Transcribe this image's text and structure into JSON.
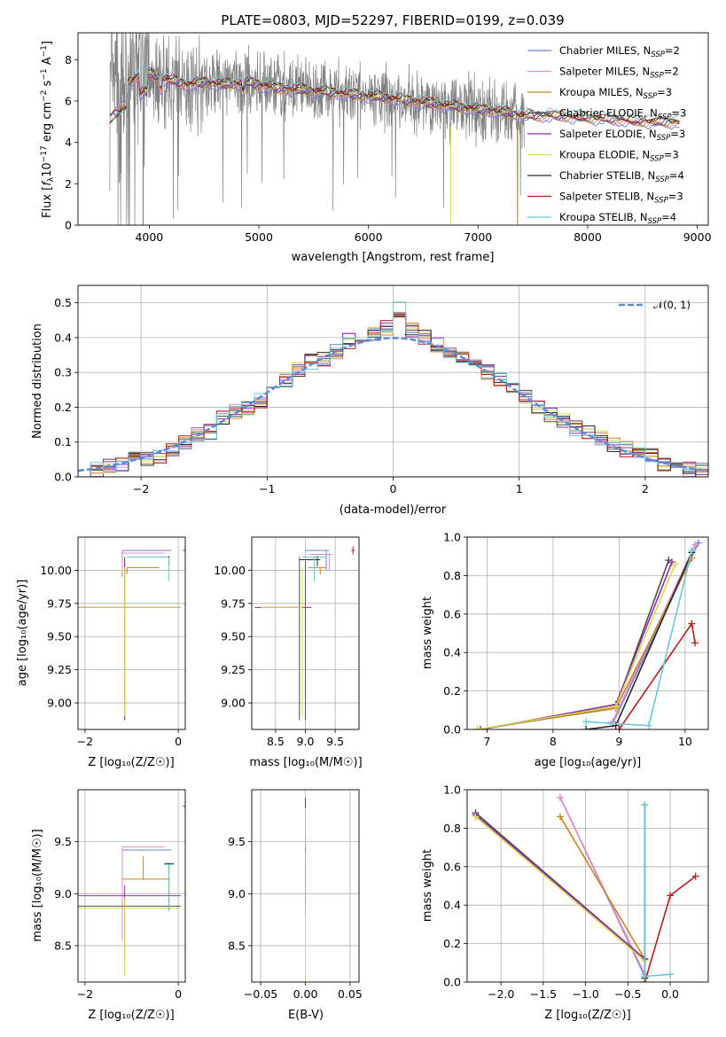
{
  "chart_data": [
    {
      "id": "spectrum",
      "type": "line",
      "title": "PLATE=0803, MJD=52297, FIBERID=0199, z=0.039",
      "xlabel": "wavelength [Angstrom, rest frame]",
      "ylabel_parts": [
        "Flux [",
        "f",
        "λ",
        "10",
        "−17",
        " erg cm",
        "−2",
        " s",
        "−1",
        " A",
        "−1",
        "]"
      ],
      "xlim": [
        3350,
        9100
      ],
      "ylim": [
        0,
        9.3
      ],
      "xticks": [
        4000,
        5000,
        6000,
        7000,
        8000,
        9000
      ],
      "yticks": [
        0,
        2,
        4,
        6,
        8
      ],
      "grid": false,
      "legend_position": "top-right",
      "observed_color": "#808080",
      "observed_range": [
        3640,
        7420
      ],
      "model_range": [
        3640,
        8840
      ],
      "continuum_x": [
        3640,
        3800,
        3950,
        4050,
        4200,
        4350,
        4500,
        4700,
        4900,
        5200,
        5500,
        5800,
        6100,
        6400,
        6700,
        7000,
        7200,
        7400,
        7700,
        8000,
        8300,
        8600,
        8840
      ],
      "continuum_y": [
        6.2,
        6.8,
        7.5,
        7.2,
        7.0,
        6.8,
        6.9,
        6.8,
        6.9,
        6.6,
        6.5,
        6.35,
        6.2,
        6.0,
        5.8,
        5.6,
        5.5,
        5.3,
        5.3,
        5.2,
        5.1,
        5.0,
        5.0
      ],
      "series": [
        {
          "name_main": "Chabrier MILES, N",
          "name_sub": "SSP",
          "name_tail": "=2",
          "color": "#6f7fd8"
        },
        {
          "name_main": "Salpeter MILES, N",
          "name_sub": "SSP",
          "name_tail": "=2",
          "color": "#e38fc8"
        },
        {
          "name_main": "Kroupa MILES, N",
          "name_sub": "SSP",
          "name_tail": "=3",
          "color": "#c8821e"
        },
        {
          "name_main": "Chabrier ELODIE, N",
          "name_sub": "SSP",
          "name_tail": "=3",
          "color": "#4d4d4d"
        },
        {
          "name_main": "Salpeter ELODIE, N",
          "name_sub": "SSP",
          "name_tail": "=3",
          "color": "#8b2fb0"
        },
        {
          "name_main": "Kroupa ELODIE, N",
          "name_sub": "SSP",
          "name_tail": "=3",
          "color": "#d8d84a"
        },
        {
          "name_main": "Chabrier STELIB, N",
          "name_sub": "SSP",
          "name_tail": "=4",
          "color": "#2a2a2a"
        },
        {
          "name_main": "Salpeter STELIB, N",
          "name_sub": "SSP",
          "name_tail": "=3",
          "color": "#b81c1c"
        },
        {
          "name_main": "Kroupa STELIB, N",
          "name_sub": "SSP",
          "name_tail": "=4",
          "color": "#6cc8d8"
        }
      ]
    },
    {
      "id": "residuals",
      "type": "histogram",
      "xlabel": "(data-model)/error",
      "ylabel": "Normed distribution",
      "xlim": [
        -2.5,
        2.5
      ],
      "ylim": [
        0,
        0.55
      ],
      "xticks": [
        -2,
        -1,
        0,
        1,
        2
      ],
      "xtick_labels": [
        "−2",
        "−1",
        "0",
        "1",
        "2"
      ],
      "yticks": [
        0.0,
        0.1,
        0.2,
        0.3,
        0.4,
        0.5
      ],
      "ytick_labels": [
        "0.0",
        "0.1",
        "0.2",
        "0.3",
        "0.4",
        "0.5"
      ],
      "grid": true,
      "legend_position": "top-right",
      "gaussian_label": "𝒩(0, 1)",
      "gaussian_color": "#5b8dd6",
      "bin_width": 0.1,
      "bin_centers": [
        -2.45,
        -2.35,
        -2.25,
        -2.15,
        -2.05,
        -1.95,
        -1.85,
        -1.75,
        -1.65,
        -1.55,
        -1.45,
        -1.35,
        -1.25,
        -1.15,
        -1.05,
        -0.95,
        -0.85,
        -0.75,
        -0.65,
        -0.55,
        -0.45,
        -0.35,
        -0.25,
        -0.15,
        -0.05,
        0.05,
        0.15,
        0.25,
        0.35,
        0.45,
        0.55,
        0.65,
        0.75,
        0.85,
        0.95,
        1.05,
        1.15,
        1.25,
        1.35,
        1.45,
        1.55,
        1.65,
        1.75,
        1.85,
        1.95,
        2.05,
        2.15,
        2.25,
        2.35,
        2.45
      ],
      "bin_values": [
        0.02,
        0.02,
        0.03,
        0.04,
        0.05,
        0.05,
        0.06,
        0.08,
        0.1,
        0.12,
        0.13,
        0.17,
        0.19,
        0.2,
        0.22,
        0.26,
        0.28,
        0.31,
        0.33,
        0.34,
        0.36,
        0.39,
        0.4,
        0.41,
        0.43,
        0.48,
        0.42,
        0.4,
        0.38,
        0.36,
        0.35,
        0.33,
        0.3,
        0.28,
        0.25,
        0.23,
        0.2,
        0.18,
        0.16,
        0.14,
        0.13,
        0.11,
        0.09,
        0.08,
        0.07,
        0.06,
        0.04,
        0.03,
        0.02,
        0.02
      ]
    },
    {
      "id": "age-vs-Z",
      "type": "errorbar",
      "xlabel": "Z [log₁₀(Z/Z☉)]",
      "ylabel": "age  [log₁₀(age/yr)]",
      "xlim": [
        -2.15,
        0.15
      ],
      "ylim": [
        8.8,
        10.25
      ],
      "xticks": [
        -2,
        0
      ],
      "xtick_labels": [
        "−2",
        "0"
      ],
      "yticks": [
        9.0,
        9.25,
        9.5,
        9.75,
        10.0
      ],
      "ytick_labels": [
        "9.00",
        "9.25",
        "9.50",
        "9.75",
        "10.00"
      ],
      "grid": true
    },
    {
      "id": "age-vs-mass",
      "type": "errorbar",
      "xlabel": "mass [log₁₀(M/M☉)]",
      "ylabel": "",
      "xlim": [
        8.1,
        9.9
      ],
      "ylim": [
        8.8,
        10.25
      ],
      "xticks": [
        8.5,
        9.0,
        9.5
      ],
      "xtick_labels": [
        "8.5",
        "9.0",
        "9.5"
      ],
      "yticks": [
        9.0,
        9.25,
        9.5,
        9.75,
        10.0
      ],
      "ytick_labels": [
        "9.00",
        "9.25",
        "9.50",
        "9.75",
        "10.00"
      ],
      "grid": true
    },
    {
      "id": "massweight-vs-age",
      "type": "line",
      "xlabel": "age  [log₁₀(age/yr)]",
      "ylabel": "mass weight",
      "xlim": [
        6.7,
        10.35
      ],
      "ylim": [
        0,
        1.0
      ],
      "xticks": [
        7,
        8,
        9,
        10
      ],
      "xtick_labels": [
        "7",
        "8",
        "9",
        "10"
      ],
      "yticks": [
        0.0,
        0.2,
        0.4,
        0.6,
        0.8,
        1.0
      ],
      "ytick_labels": [
        "0.0",
        "0.2",
        "0.4",
        "0.6",
        "0.8",
        "1.0"
      ],
      "grid": true,
      "lines": [
        {
          "color": "#6f7fd8",
          "x": [
            8.9,
            10.2
          ],
          "y": [
            0.03,
            0.97
          ]
        },
        {
          "color": "#e38fc8",
          "x": [
            8.9,
            10.15
          ],
          "y": [
            0.04,
            0.96
          ]
        },
        {
          "color": "#c8821e",
          "x": [
            6.85,
            8.95,
            10.1
          ],
          "y": [
            0.0,
            0.11,
            0.89
          ]
        },
        {
          "color": "#4d4d4d",
          "x": [
            6.9,
            8.95,
            9.75
          ],
          "y": [
            0.0,
            0.12,
            0.88
          ]
        },
        {
          "color": "#8b2fb0",
          "x": [
            6.9,
            8.95,
            9.8
          ],
          "y": [
            0.0,
            0.13,
            0.87
          ]
        },
        {
          "color": "#d8d84a",
          "x": [
            6.85,
            8.95,
            9.85
          ],
          "y": [
            0.0,
            0.12,
            0.86
          ]
        },
        {
          "color": "#2a2a2a",
          "x": [
            8.5,
            8.95,
            10.1
          ],
          "y": [
            0.0,
            0.02,
            0.92
          ]
        },
        {
          "color": "#b81c1c",
          "x": [
            9.0,
            10.1,
            10.15
          ],
          "y": [
            0.0,
            0.55,
            0.45
          ]
        },
        {
          "color": "#6cc8d8",
          "x": [
            8.5,
            9.45,
            10.1
          ],
          "y": [
            0.04,
            0.02,
            0.93
          ]
        }
      ]
    },
    {
      "id": "mass-vs-Z",
      "type": "errorbar",
      "xlabel": "Z [log₁₀(Z/Z☉)]",
      "ylabel": "mass [log₁₀(M/M☉)]",
      "xlim": [
        -2.15,
        0.15
      ],
      "ylim": [
        8.15,
        10.0
      ],
      "xticks": [
        -2,
        0
      ],
      "xtick_labels": [
        "−2",
        "0"
      ],
      "yticks": [
        8.5,
        9.0,
        9.5
      ],
      "ytick_labels": [
        "8.5",
        "9.0",
        "9.5"
      ],
      "grid": true
    },
    {
      "id": "mass-vs-EBV",
      "type": "errorbar",
      "xlabel": "E(B-V)",
      "ylabel": "",
      "xlim": [
        -0.06,
        0.06
      ],
      "ylim": [
        8.15,
        10.0
      ],
      "xticks": [
        -0.05,
        0.0,
        0.05
      ],
      "xtick_labels": [
        "−0.05",
        "0.00",
        "0.05"
      ],
      "yticks": [
        8.5,
        9.0,
        9.5
      ],
      "ytick_labels": [
        "8.5",
        "9.0",
        "9.5"
      ],
      "grid": true
    },
    {
      "id": "massweight-vs-Z",
      "type": "line",
      "xlabel": "Z [log₁₀(Z/Z☉)]",
      "ylabel": "mass weight",
      "xlim": [
        -2.4,
        0.45
      ],
      "ylim": [
        0,
        1.0
      ],
      "xticks": [
        -2.0,
        -1.5,
        -1.0,
        -0.5,
        0.0
      ],
      "xtick_labels": [
        "−2.0",
        "−1.5",
        "−1.0",
        "−0.5",
        "0.0"
      ],
      "yticks": [
        0.0,
        0.2,
        0.4,
        0.6,
        0.8,
        1.0
      ],
      "ytick_labels": [
        "0.0",
        "0.2",
        "0.4",
        "0.6",
        "0.8",
        "1.0"
      ],
      "grid": true,
      "lines": [
        {
          "color": "#6f7fd8",
          "x": [
            -1.3,
            -0.3
          ],
          "y": [
            0.96,
            0.03
          ]
        },
        {
          "color": "#e38fc8",
          "x": [
            -1.3,
            -0.3
          ],
          "y": [
            0.96,
            0.04
          ]
        },
        {
          "color": "#c8821e",
          "x": [
            -1.3,
            -0.3
          ],
          "y": [
            0.86,
            0.12
          ]
        },
        {
          "color": "#4d4d4d",
          "x": [
            -2.3,
            -0.3
          ],
          "y": [
            0.88,
            0.12
          ]
        },
        {
          "color": "#8b2fb0",
          "x": [
            -2.3,
            -0.3
          ],
          "y": [
            0.87,
            0.12
          ]
        },
        {
          "color": "#d8d84a",
          "x": [
            -2.3,
            -0.3
          ],
          "y": [
            0.86,
            0.11
          ]
        },
        {
          "color": "#2a2a2a",
          "x": [
            -0.3,
            -0.3
          ],
          "y": [
            0.02,
            0.92
          ]
        },
        {
          "color": "#b81c1c",
          "x": [
            -0.3,
            0.0,
            0.3
          ],
          "y": [
            0.0,
            0.45,
            0.55
          ]
        },
        {
          "color": "#6cc8d8",
          "x": [
            -0.3,
            -0.3,
            0.0
          ],
          "y": [
            0.92,
            0.03,
            0.04
          ]
        }
      ]
    }
  ]
}
